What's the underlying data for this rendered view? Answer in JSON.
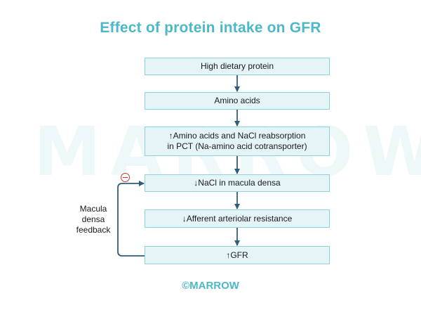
{
  "title": "Effect of protein intake on GFR",
  "watermark": "MARROW",
  "steps": [
    {
      "line1": "High dietary protein",
      "line2": ""
    },
    {
      "line1": "Amino acids",
      "line2": ""
    },
    {
      "line1": "↑Amino acids and NaCl reabsorption",
      "line2": "in PCT (Na-amino acid cotransporter)"
    },
    {
      "line1": "↓NaCl in macula densa",
      "line2": ""
    },
    {
      "line1": "↓Afferent arteriolar resistance",
      "line2": ""
    },
    {
      "line1": "↑GFR",
      "line2": ""
    }
  ],
  "feedback": {
    "line1": "Macula",
    "line2": "densa",
    "line3": "feedback",
    "sign_icon": "minus-circle-icon"
  },
  "footer": "©MARROW",
  "colors": {
    "accent": "#4cb8c8",
    "box_fill": "#e4f4f7",
    "box_border": "#8fd0db",
    "arrow": "#2f5f78",
    "minus": "#d0342c"
  }
}
